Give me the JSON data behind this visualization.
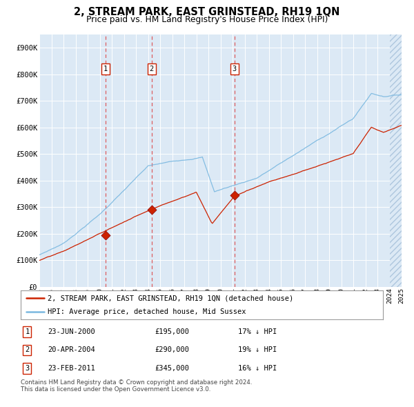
{
  "title": "2, STREAM PARK, EAST GRINSTEAD, RH19 1QN",
  "subtitle": "Price paid vs. HM Land Registry's House Price Index (HPI)",
  "bg_color": "#dce9f5",
  "hpi_color": "#7ab8e0",
  "price_color": "#cc2200",
  "vline_color": "#dd4444",
  "ylim": [
    0,
    950000
  ],
  "yticks": [
    0,
    100000,
    200000,
    300000,
    400000,
    500000,
    600000,
    700000,
    800000,
    900000
  ],
  "ytick_labels": [
    "£0",
    "£100K",
    "£200K",
    "£300K",
    "£400K",
    "£500K",
    "£600K",
    "£700K",
    "£800K",
    "£900K"
  ],
  "sale_years": [
    2000.48,
    2004.3,
    2011.15
  ],
  "sale_prices": [
    195000,
    290000,
    345000
  ],
  "sale_labels": [
    "1",
    "2",
    "3"
  ],
  "sale_table": [
    {
      "num": "1",
      "date": "23-JUN-2000",
      "price": "£195,000",
      "note": "17% ↓ HPI"
    },
    {
      "num": "2",
      "date": "20-APR-2004",
      "price": "£290,000",
      "note": "19% ↓ HPI"
    },
    {
      "num": "3",
      "date": "23-FEB-2011",
      "price": "£345,000",
      "note": "16% ↓ HPI"
    }
  ],
  "legend_line1": "2, STREAM PARK, EAST GRINSTEAD, RH19 1QN (detached house)",
  "legend_line2": "HPI: Average price, detached house, Mid Sussex",
  "footnote": "Contains HM Land Registry data © Crown copyright and database right 2024.\nThis data is licensed under the Open Government Licence v3.0."
}
